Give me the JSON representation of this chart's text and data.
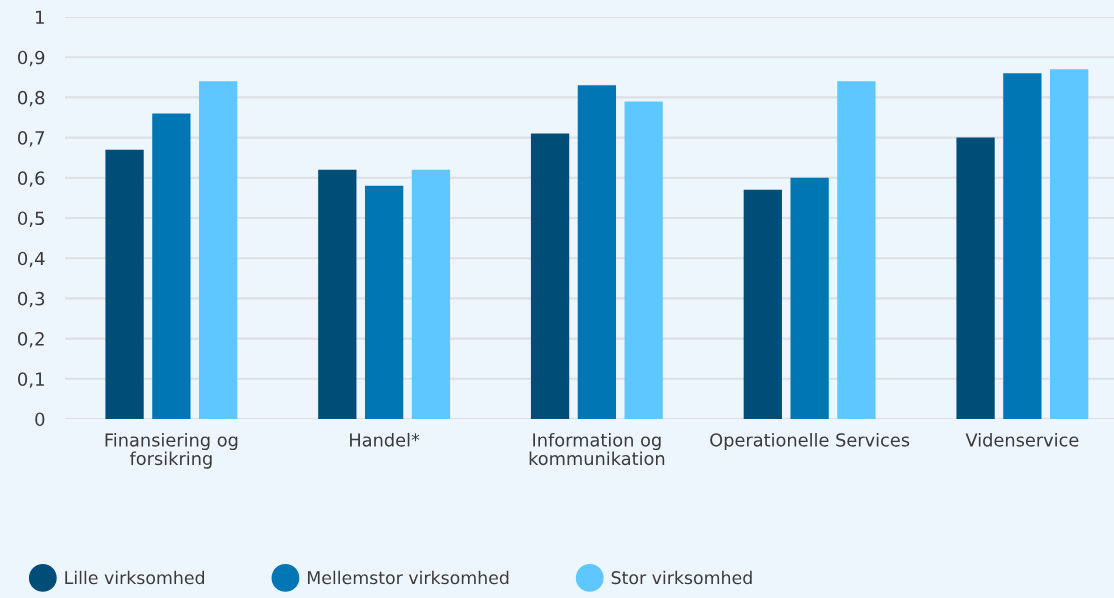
{
  "chart_data": {
    "type": "bar",
    "categories": [
      "Finansiering og forsikring",
      "Handel*",
      "Information og kommunikation",
      "Operationelle Services",
      "Videnservice"
    ],
    "series": [
      {
        "name": "Lille virksomhed",
        "color": "#004e78",
        "values": [
          0.67,
          0.62,
          0.71,
          0.57,
          0.7
        ]
      },
      {
        "name": "Mellemstor virksomhed",
        "color": "#0076b5",
        "values": [
          0.76,
          0.58,
          0.83,
          0.6,
          0.86
        ]
      },
      {
        "name": "Stor virksomhed",
        "color": "#5ec7ff",
        "values": [
          0.84,
          0.62,
          0.79,
          0.84,
          0.87
        ]
      }
    ],
    "ylim": [
      0,
      1
    ],
    "yticks": [
      0,
      {
        "value": 0.1,
        "label": "0,1"
      },
      {
        "value": 0.2,
        "label": "0,2"
      },
      {
        "value": 0.3,
        "label": "0,3"
      },
      {
        "value": 0.4,
        "label": "0,4"
      },
      {
        "value": 0.5,
        "label": "0,5"
      },
      {
        "value": 0.6,
        "label": "0,6"
      },
      {
        "value": 0.7,
        "label": "0,7"
      },
      {
        "value": 0.8,
        "label": "0,8"
      },
      {
        "value": 0.9,
        "label": "0,9"
      },
      1
    ],
    "grid": "y",
    "legend": "bottom"
  }
}
